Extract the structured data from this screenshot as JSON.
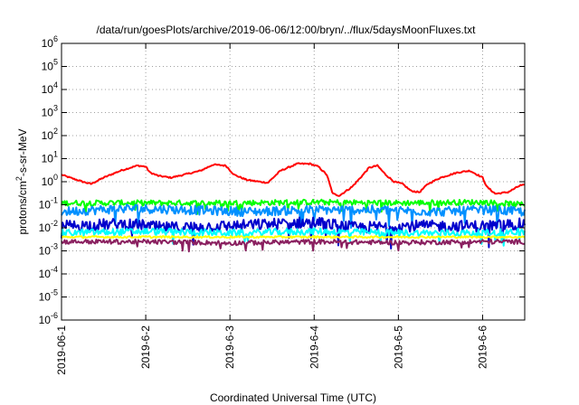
{
  "chart_data": {
    "type": "line",
    "title": "/data/run/goesPlots/archive/2019-06-06/12:00/bryn/../flux/5daysMoonFluxes.txt",
    "xlabel": "Coordinated Universal Time (UTC)",
    "ylabel": {
      "prefix": "protons/cm",
      "sup": "2",
      "suffix": "-s-sr-MeV"
    },
    "yscale": "log",
    "ylim": [
      1e-06,
      1000000.0
    ],
    "y_ticks": [
      {
        "value": 1000000.0,
        "base": "10",
        "exp": "6"
      },
      {
        "value": 100000.0,
        "base": "10",
        "exp": "5"
      },
      {
        "value": 10000.0,
        "base": "10",
        "exp": "4"
      },
      {
        "value": 1000.0,
        "base": "10",
        "exp": "3"
      },
      {
        "value": 100.0,
        "base": "10",
        "exp": "2"
      },
      {
        "value": 10.0,
        "base": "10",
        "exp": "1"
      },
      {
        "value": 1.0,
        "base": "10",
        "exp": "0"
      },
      {
        "value": 0.1,
        "base": "10",
        "exp": "-1"
      },
      {
        "value": 0.01,
        "base": "10",
        "exp": "-2"
      },
      {
        "value": 0.001,
        "base": "10",
        "exp": "-3"
      },
      {
        "value": 0.0001,
        "base": "10",
        "exp": "-4"
      },
      {
        "value": 1e-05,
        "base": "10",
        "exp": "-5"
      },
      {
        "value": 1e-06,
        "base": "10",
        "exp": "-6"
      }
    ],
    "xlim_days": [
      0,
      5.5
    ],
    "x_ticks": [
      {
        "value": 0,
        "label": "2019-06-1"
      },
      {
        "value": 1,
        "label": "2019-6-2"
      },
      {
        "value": 2,
        "label": "2019-6-3"
      },
      {
        "value": 3,
        "label": "2019-6-4"
      },
      {
        "value": 4,
        "label": "2019-6-5"
      },
      {
        "value": 5,
        "label": "2019-6-6"
      }
    ],
    "grid": true,
    "series": [
      {
        "color": "#ff0000",
        "noise": 0.03,
        "points": [
          [
            0.0,
            2.0
          ],
          [
            0.1,
            1.5
          ],
          [
            0.25,
            1.0
          ],
          [
            0.35,
            0.8
          ],
          [
            0.5,
            1.5
          ],
          [
            0.7,
            3.0
          ],
          [
            0.9,
            5.0
          ],
          [
            1.0,
            4.5
          ],
          [
            1.05,
            2.5
          ],
          [
            1.15,
            1.8
          ],
          [
            1.3,
            1.5
          ],
          [
            1.45,
            2.0
          ],
          [
            1.65,
            3.0
          ],
          [
            1.8,
            5.5
          ],
          [
            1.95,
            5.0
          ],
          [
            2.05,
            2.0
          ],
          [
            2.2,
            1.2
          ],
          [
            2.35,
            1.0
          ],
          [
            2.45,
            0.9
          ],
          [
            2.6,
            3.0
          ],
          [
            2.8,
            6.0
          ],
          [
            2.95,
            6.0
          ],
          [
            3.05,
            4.5
          ],
          [
            3.15,
            2.0
          ],
          [
            3.22,
            0.3
          ],
          [
            3.3,
            0.25
          ],
          [
            3.45,
            0.6
          ],
          [
            3.55,
            1.5
          ],
          [
            3.65,
            4.0
          ],
          [
            3.75,
            5.0
          ],
          [
            3.85,
            2.0
          ],
          [
            3.95,
            1.0
          ],
          [
            4.05,
            0.8
          ],
          [
            4.15,
            0.4
          ],
          [
            4.25,
            0.35
          ],
          [
            4.35,
            0.8
          ],
          [
            4.5,
            1.5
          ],
          [
            4.7,
            2.5
          ],
          [
            4.85,
            3.0
          ],
          [
            5.0,
            1.5
          ],
          [
            5.05,
            0.6
          ],
          [
            5.15,
            0.3
          ],
          [
            5.3,
            0.35
          ],
          [
            5.45,
            0.7
          ],
          [
            5.5,
            0.7
          ]
        ]
      },
      {
        "color": "#00ff00",
        "noise": 0.12,
        "points": [
          [
            0.0,
            0.12
          ],
          [
            1.0,
            0.12
          ],
          [
            2.0,
            0.12
          ],
          [
            3.0,
            0.13
          ],
          [
            4.0,
            0.12
          ],
          [
            5.0,
            0.13
          ],
          [
            5.5,
            0.1
          ]
        ]
      },
      {
        "color": "#0090ff",
        "noise": 0.2,
        "points": [
          [
            0.0,
            0.05
          ],
          [
            0.8,
            0.07
          ],
          [
            1.5,
            0.06
          ],
          [
            2.2,
            0.05
          ],
          [
            3.0,
            0.06
          ],
          [
            3.8,
            0.06
          ],
          [
            4.5,
            0.05
          ],
          [
            5.0,
            0.06
          ],
          [
            5.5,
            0.05
          ]
        ]
      },
      {
        "color": "#0000cc",
        "noise": 0.25,
        "points": [
          [
            0.0,
            0.012
          ],
          [
            0.8,
            0.015
          ],
          [
            1.2,
            0.01
          ],
          [
            2.0,
            0.012
          ],
          [
            3.0,
            0.018
          ],
          [
            3.5,
            0.01
          ],
          [
            4.0,
            0.012
          ],
          [
            5.0,
            0.012
          ],
          [
            5.5,
            0.015
          ]
        ]
      },
      {
        "color": "#00ffff",
        "noise": 0.15,
        "points": [
          [
            0.0,
            0.006
          ],
          [
            1.0,
            0.007
          ],
          [
            2.0,
            0.006
          ],
          [
            3.0,
            0.007
          ],
          [
            4.0,
            0.006
          ],
          [
            5.0,
            0.006
          ],
          [
            5.5,
            0.007
          ]
        ]
      },
      {
        "color": "#ffff00",
        "noise": 0.04,
        "points": [
          [
            0.0,
            0.004
          ],
          [
            5.5,
            0.004
          ]
        ]
      },
      {
        "color": "#8a2060",
        "noise": 0.1,
        "points": [
          [
            0.0,
            0.0025
          ],
          [
            1.0,
            0.0025
          ],
          [
            2.0,
            0.0022
          ],
          [
            3.0,
            0.0025
          ],
          [
            4.0,
            0.0023
          ],
          [
            5.0,
            0.0025
          ],
          [
            5.5,
            0.0025
          ]
        ]
      }
    ]
  }
}
